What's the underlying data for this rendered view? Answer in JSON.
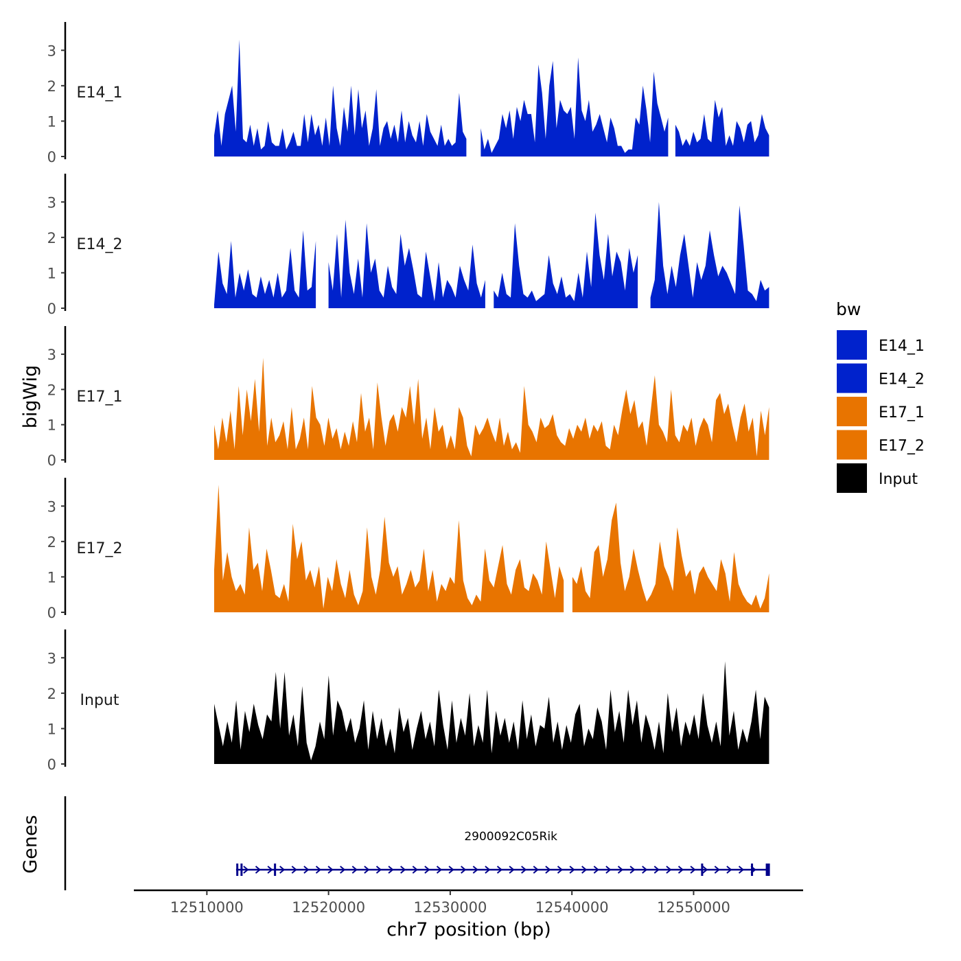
{
  "chart_data": {
    "type": "area",
    "y_axis_title": "bigWig",
    "x_axis_title": "chr7 position (bp)",
    "genes_track_title": "Genes",
    "xlim": [
      12504000,
      12559000
    ],
    "x_ticks": [
      12510000,
      12520000,
      12530000,
      12540000,
      12550000
    ],
    "x_tick_labels": [
      "12510000",
      "12520000",
      "12530000",
      "12540000",
      "12550000"
    ],
    "ylim": [
      0,
      3.8
    ],
    "y_ticks": [
      0,
      1,
      2,
      3
    ],
    "y_tick_labels": [
      "0",
      "1",
      "2",
      "3"
    ],
    "data_start": 12510600,
    "data_end": 12556200,
    "legend": {
      "title": "bw",
      "position": "right",
      "entries": [
        {
          "label": "E14_1",
          "color": "#0022CC"
        },
        {
          "label": "E14_2",
          "color": "#0022CC"
        },
        {
          "label": "E17_1",
          "color": "#E87400"
        },
        {
          "label": "E17_2",
          "color": "#E87400"
        },
        {
          "label": "Input",
          "color": "#000000"
        }
      ]
    },
    "series": [
      {
        "name": "E14_1",
        "color": "#0022CC",
        "values": [
          0.6,
          1.3,
          0.3,
          1.2,
          1.6,
          2.0,
          0.7,
          3.3,
          0.5,
          0.4,
          0.9,
          0.3,
          0.8,
          0.2,
          0.3,
          1.0,
          0.4,
          0.3,
          0.3,
          0.8,
          0.2,
          0.4,
          0.7,
          0.3,
          0.3,
          1.2,
          0.4,
          1.2,
          0.6,
          0.9,
          0.3,
          1.1,
          0.3,
          2.0,
          0.8,
          0.3,
          1.4,
          0.7,
          2.0,
          0.6,
          1.9,
          0.8,
          1.3,
          0.3,
          0.8,
          1.9,
          0.3,
          0.8,
          1.0,
          0.5,
          0.9,
          0.4,
          1.3,
          0.4,
          1.0,
          0.6,
          0.4,
          1.0,
          0.3,
          1.2,
          0.7,
          0.5,
          0.3,
          0.9,
          0.3,
          0.5,
          0.3,
          0.4,
          1.8,
          0.7,
          0.5,
          1.4,
          0.3,
          0.4,
          0.8,
          0.2,
          0.5,
          0.1,
          0.3,
          0.5,
          1.2,
          0.8,
          1.3,
          0.5,
          1.4,
          1.0,
          1.6,
          1.2,
          1.2,
          0.4,
          2.6,
          1.8,
          0.5,
          2.0,
          2.7,
          0.8,
          1.6,
          1.3,
          1.2,
          1.4,
          0.5,
          2.8,
          1.3,
          1.0,
          1.6,
          0.7,
          0.9,
          1.2,
          0.8,
          0.4,
          1.1,
          0.8,
          0.3,
          0.3,
          0.1,
          0.2,
          0.2,
          1.1,
          0.9,
          2.0,
          1.3,
          0.4,
          2.4,
          1.5,
          1.1,
          0.7,
          1.1,
          1.0,
          0.9,
          0.7,
          0.3,
          0.5,
          0.3,
          0.7,
          0.4,
          0.5,
          1.2,
          0.5,
          0.4,
          1.6,
          1.1,
          1.4,
          0.3,
          0.6,
          0.3,
          1.0,
          0.8,
          0.4,
          0.9,
          1.0,
          0.4,
          0.6,
          1.2,
          0.8,
          0.6
        ],
        "gaps": [
          [
            0.46,
            0.48
          ],
          [
            0.82,
            0.83
          ]
        ]
      },
      {
        "name": "E14_2",
        "color": "#0022CC",
        "values": [
          0.1,
          1.6,
          0.7,
          0.4,
          1.9,
          0.3,
          1.0,
          0.5,
          1.1,
          0.4,
          0.3,
          0.9,
          0.4,
          0.8,
          0.3,
          1.0,
          0.3,
          0.5,
          1.7,
          0.5,
          0.3,
          2.2,
          0.5,
          0.6,
          1.9,
          0.3,
          0.2,
          1.3,
          0.5,
          2.1,
          0.3,
          2.5,
          1.0,
          0.4,
          1.4,
          0.3,
          2.4,
          1.0,
          1.4,
          0.5,
          0.3,
          1.2,
          0.6,
          0.4,
          2.1,
          1.2,
          1.7,
          1.1,
          0.4,
          0.3,
          1.6,
          0.9,
          0.2,
          1.3,
          0.3,
          0.8,
          0.6,
          0.3,
          1.2,
          0.8,
          0.5,
          1.8,
          0.7,
          0.3,
          0.8,
          0.4,
          0.5,
          0.3,
          1.0,
          0.4,
          0.3,
          2.4,
          1.2,
          0.4,
          0.3,
          0.5,
          0.2,
          0.3,
          0.4,
          1.5,
          0.7,
          0.4,
          0.9,
          0.3,
          0.4,
          0.2,
          1.0,
          0.3,
          1.6,
          0.6,
          2.7,
          1.5,
          0.8,
          2.1,
          0.9,
          1.6,
          1.3,
          0.5,
          1.7,
          1.0,
          1.5,
          0.9,
          0.6,
          0.3,
          0.8,
          3.0,
          1.2,
          0.4,
          1.2,
          0.6,
          1.5,
          2.1,
          1.2,
          0.3,
          1.3,
          0.8,
          1.2,
          2.2,
          1.5,
          0.9,
          1.2,
          1.0,
          0.7,
          0.4,
          2.9,
          1.8,
          0.5,
          0.4,
          0.2,
          0.8,
          0.5,
          0.6
        ],
        "gaps": [
          [
            0.185,
            0.2
          ],
          [
            0.49,
            0.5
          ],
          [
            0.77,
            0.78
          ]
        ]
      },
      {
        "name": "E17_1",
        "color": "#E87400",
        "values": [
          1.0,
          0.3,
          1.2,
          0.5,
          1.4,
          0.3,
          2.1,
          0.7,
          2.0,
          1.1,
          2.3,
          0.8,
          2.9,
          0.4,
          1.2,
          0.5,
          0.7,
          1.1,
          0.3,
          1.5,
          0.3,
          0.6,
          1.2,
          0.3,
          2.1,
          1.2,
          1.0,
          0.4,
          1.2,
          0.6,
          0.9,
          0.3,
          0.8,
          0.4,
          1.1,
          0.5,
          1.9,
          0.8,
          1.2,
          0.3,
          2.2,
          1.2,
          0.4,
          1.1,
          1.3,
          0.8,
          1.5,
          1.2,
          2.1,
          1.0,
          2.3,
          0.6,
          1.2,
          0.3,
          1.5,
          0.8,
          1.0,
          0.3,
          0.7,
          0.3,
          1.5,
          1.2,
          0.4,
          0.1,
          1.0,
          0.7,
          0.9,
          1.2,
          0.8,
          0.5,
          1.2,
          0.4,
          0.8,
          0.3,
          0.5,
          0.2,
          2.1,
          1.0,
          0.8,
          0.5,
          1.2,
          0.9,
          1.0,
          1.3,
          0.7,
          0.5,
          0.4,
          0.9,
          0.6,
          1.0,
          0.8,
          1.2,
          0.6,
          1.0,
          0.8,
          1.1,
          0.4,
          0.3,
          1.0,
          0.7,
          1.4,
          2.0,
          1.3,
          1.7,
          0.9,
          1.1,
          0.4,
          1.4,
          2.4,
          1.0,
          0.8,
          0.5,
          2.0,
          0.7,
          0.5,
          1.0,
          0.8,
          1.2,
          0.4,
          0.9,
          1.2,
          1.0,
          0.5,
          1.7,
          1.9,
          1.3,
          1.6,
          1.0,
          0.5,
          1.2,
          1.6,
          0.8,
          1.2,
          0.1,
          1.4,
          0.7,
          1.5
        ]
      },
      {
        "name": "E17_2",
        "color": "#E87400",
        "values": [
          1.2,
          3.6,
          0.9,
          1.7,
          1.0,
          0.6,
          0.8,
          0.5,
          2.4,
          1.2,
          1.4,
          0.6,
          1.8,
          1.2,
          0.5,
          0.4,
          0.8,
          0.3,
          2.5,
          1.5,
          2.0,
          0.9,
          1.2,
          0.7,
          1.3,
          0.1,
          1.0,
          0.6,
          1.5,
          0.8,
          0.4,
          1.2,
          0.5,
          0.2,
          0.6,
          2.4,
          1.0,
          0.5,
          1.2,
          2.7,
          1.4,
          1.0,
          1.3,
          0.5,
          0.8,
          1.2,
          0.7,
          0.9,
          1.8,
          0.6,
          1.2,
          0.3,
          0.8,
          0.6,
          1.0,
          0.8,
          2.6,
          0.9,
          0.4,
          0.2,
          0.5,
          0.3,
          1.8,
          0.9,
          0.7,
          1.3,
          1.9,
          0.8,
          0.5,
          1.2,
          1.5,
          0.7,
          0.6,
          1.1,
          0.9,
          0.5,
          2.0,
          1.2,
          0.4,
          1.3,
          0.9,
          0.7,
          1.0,
          0.8,
          1.3,
          0.6,
          0.4,
          1.7,
          1.9,
          1.0,
          1.5,
          2.6,
          3.1,
          1.4,
          0.6,
          1.0,
          1.8,
          1.2,
          0.7,
          0.3,
          0.5,
          0.8,
          2.0,
          1.3,
          1.0,
          0.6,
          2.4,
          1.6,
          1.0,
          1.2,
          0.5,
          1.1,
          1.3,
          1.0,
          0.8,
          0.6,
          1.5,
          1.1,
          0.3,
          1.7,
          0.8,
          0.5,
          0.3,
          0.2,
          0.5,
          0.1,
          0.4,
          1.1
        ],
        "gaps": [
          [
            0.635,
            0.64
          ]
        ]
      },
      {
        "name": "Input",
        "color": "#000000",
        "values": [
          1.7,
          1.1,
          0.5,
          1.2,
          0.6,
          1.8,
          0.4,
          1.5,
          0.9,
          1.7,
          1.1,
          0.7,
          1.4,
          1.2,
          2.6,
          1.0,
          2.6,
          0.8,
          1.4,
          0.5,
          2.2,
          0.6,
          0.1,
          0.5,
          1.2,
          0.7,
          2.5,
          0.8,
          1.8,
          1.5,
          0.9,
          1.3,
          0.6,
          1.0,
          1.8,
          0.4,
          1.5,
          0.7,
          1.3,
          0.5,
          1.0,
          0.3,
          1.6,
          0.9,
          1.3,
          0.4,
          1.0,
          1.5,
          0.7,
          1.2,
          0.5,
          2.1,
          1.1,
          0.4,
          1.8,
          0.6,
          1.3,
          0.8,
          2.0,
          0.5,
          1.1,
          0.6,
          2.1,
          0.3,
          1.5,
          0.8,
          1.3,
          0.6,
          1.2,
          0.4,
          1.8,
          0.7,
          1.4,
          0.5,
          1.1,
          1.0,
          1.9,
          0.6,
          1.2,
          0.4,
          1.1,
          0.6,
          1.4,
          1.7,
          0.5,
          1.0,
          0.7,
          1.6,
          1.2,
          0.4,
          2.1,
          0.9,
          1.5,
          0.6,
          2.1,
          1.1,
          1.8,
          0.6,
          1.4,
          1.0,
          0.4,
          1.2,
          0.3,
          2.0,
          0.9,
          1.6,
          0.5,
          1.2,
          0.8,
          1.4,
          0.7,
          2.0,
          1.1,
          0.6,
          1.2,
          0.5,
          2.9,
          0.8,
          1.5,
          0.4,
          1.0,
          0.6,
          1.2,
          2.1,
          0.7,
          1.9,
          1.6
        ]
      }
    ],
    "gene": {
      "name": "2900092C05Rik",
      "start": 12512400,
      "end": 12556200,
      "strand": "+",
      "color": "#00008B",
      "exons": [
        12512500,
        12512850,
        12515600,
        12550700,
        12554800,
        12556100
      ]
    }
  }
}
